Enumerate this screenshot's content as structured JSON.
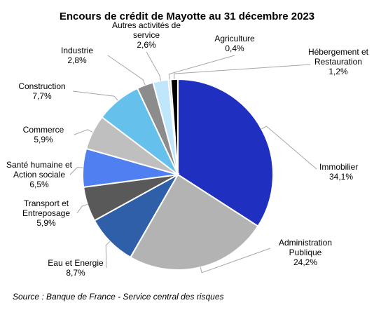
{
  "chart_data": {
    "type": "pie",
    "title": "Encours de crédit de Mayotte au 31 décembre 2023",
    "source": "Source : Banque de France - Service central des risques",
    "start_angle_deg": 0,
    "direction": "clockwise",
    "slices": [
      {
        "label": [
          "Immobilier"
        ],
        "value_label": "34,1%",
        "value": 34.1,
        "color": "#1f2fbf"
      },
      {
        "label": [
          "Administration",
          "Publique"
        ],
        "value_label": "24,2%",
        "value": 24.2,
        "color": "#b3b3b3"
      },
      {
        "label": [
          "Eau et Energie"
        ],
        "value_label": "8,7%",
        "value": 8.7,
        "color": "#2e5fa8"
      },
      {
        "label": [
          "Transport et",
          "Entreposage"
        ],
        "value_label": "5,9%",
        "value": 5.9,
        "color": "#595959"
      },
      {
        "label": [
          "Santé humaine et",
          "Action sociale"
        ],
        "value_label": "6,5%",
        "value": 6.5,
        "color": "#4f7ff0"
      },
      {
        "label": [
          "Commerce"
        ],
        "value_label": "5,9%",
        "value": 5.9,
        "color": "#bfbfbf"
      },
      {
        "label": [
          "Construction"
        ],
        "value_label": "7,7%",
        "value": 7.7,
        "color": "#66c0ec"
      },
      {
        "label": [
          "Industrie"
        ],
        "value_label": "2,8%",
        "value": 2.8,
        "color": "#8c8c8c"
      },
      {
        "label": [
          "Autres activités de",
          "service"
        ],
        "value_label": "2,6%",
        "value": 2.6,
        "color": "#bfe6fa"
      },
      {
        "label": [
          "Agriculture"
        ],
        "value_label": "0,4%",
        "value": 0.4,
        "color": "#d9d9d9"
      },
      {
        "label": [
          "Hébergement et",
          "Restauration"
        ],
        "value_label": "1,2%",
        "value": 1.2,
        "color": "#000000"
      }
    ]
  }
}
